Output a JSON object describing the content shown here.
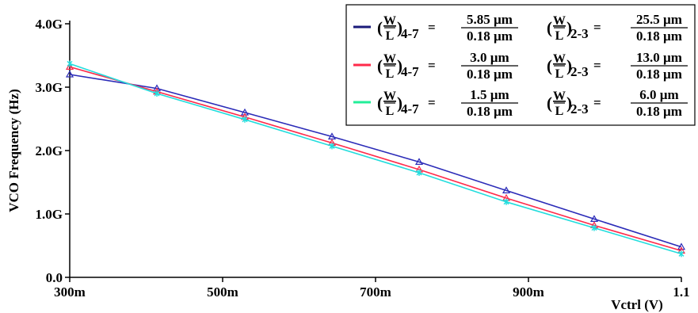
{
  "chart_data": {
    "type": "line",
    "xlabel": "Vctrl (V)",
    "ylabel": "VCO Frequency (Hz)",
    "xlim": [
      0.3,
      1.1
    ],
    "ylim": [
      0,
      4.0
    ],
    "x_ticks": [
      "300m",
      "500m",
      "700m",
      "900m",
      "1.1"
    ],
    "y_ticks": [
      "0.0",
      "1.0G",
      "2.0G",
      "3.0G",
      "4.0G"
    ],
    "grid": false,
    "legend_position": "top-right",
    "x": [
      0.3,
      0.414,
      0.529,
      0.643,
      0.757,
      0.871,
      0.986,
      1.1
    ],
    "series": [
      {
        "color": "#2b2bb8",
        "marker": "triangle",
        "values": [
          3.2,
          2.98,
          2.6,
          2.22,
          1.82,
          1.37,
          0.92,
          0.48
        ],
        "legend": {
          "sub1": "4-7",
          "num1": "5.85 µm",
          "den1": "0.18 µm",
          "sub2": "2-3",
          "num2": "25.5 µm",
          "den2": "0.18 µm"
        }
      },
      {
        "color": "#ff2a4a",
        "marker": "triangle",
        "values": [
          3.32,
          2.93,
          2.53,
          2.12,
          1.7,
          1.25,
          0.82,
          0.42
        ],
        "legend": {
          "sub1": "4-7",
          "num1": "3.0 µm",
          "den1": "0.18 µm",
          "sub2": "2-3",
          "num2": "13.0 µm",
          "den2": "0.18 µm"
        }
      },
      {
        "color": "#22dddd",
        "marker": "star",
        "values": [
          3.37,
          2.9,
          2.49,
          2.07,
          1.65,
          1.19,
          0.78,
          0.37
        ],
        "legend": {
          "sub1": "4-7",
          "num1": "1.5 µm",
          "den1": "0.18 µm",
          "sub2": "2-3",
          "num2": "6.0 µm",
          "den2": "0.18 µm"
        }
      }
    ],
    "legend_line_colors": [
      "#1a1a7a",
      "#ff2a4a",
      "#22ee99"
    ],
    "ratio_num": "W",
    "ratio_den": "L"
  }
}
